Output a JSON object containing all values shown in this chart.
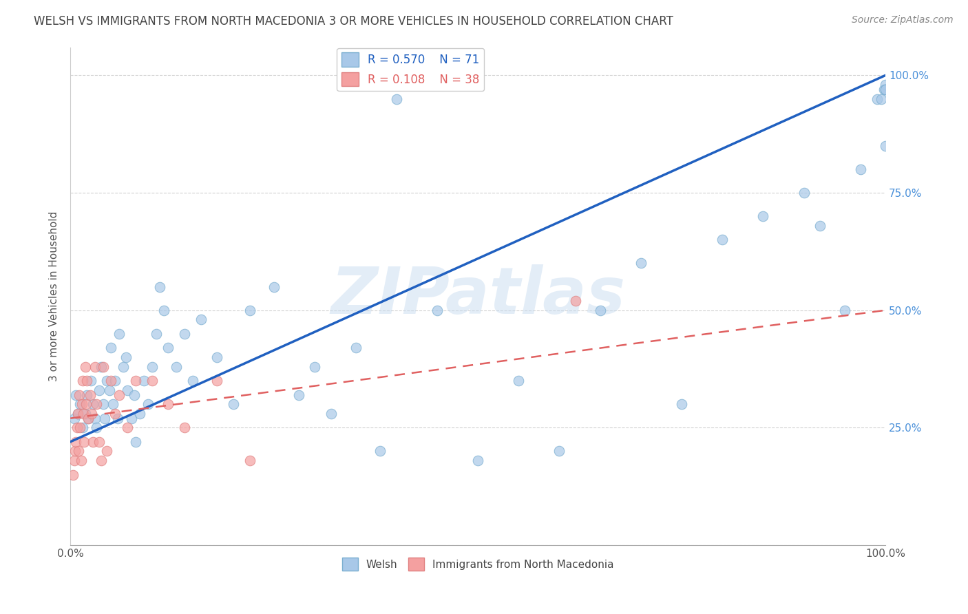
{
  "title": "WELSH VS IMMIGRANTS FROM NORTH MACEDONIA 3 OR MORE VEHICLES IN HOUSEHOLD CORRELATION CHART",
  "source": "Source: ZipAtlas.com",
  "ylabel": "3 or more Vehicles in Household",
  "watermark": "ZIPatlas",
  "legend_welsh": {
    "R": "0.570",
    "N": "71"
  },
  "legend_macedonian": {
    "R": "0.108",
    "N": "38"
  },
  "legend_labels": [
    "Welsh",
    "Immigrants from North Macedonia"
  ],
  "welsh_color": "#a8c8e8",
  "macedonian_color": "#f4a0a0",
  "welsh_line_color": "#2060c0",
  "macedonian_line_color": "#e06060",
  "title_fontsize": 12,
  "source_fontsize": 10,
  "ylabel_fontsize": 11,
  "background_color": "#ffffff",
  "welsh_x": [
    0.005,
    0.007,
    0.009,
    0.012,
    0.015,
    0.018,
    0.02,
    0.022,
    0.025,
    0.028,
    0.03,
    0.032,
    0.035,
    0.038,
    0.04,
    0.042,
    0.045,
    0.048,
    0.05,
    0.052,
    0.055,
    0.058,
    0.06,
    0.065,
    0.068,
    0.07,
    0.075,
    0.078,
    0.08,
    0.085,
    0.09,
    0.095,
    0.1,
    0.105,
    0.11,
    0.115,
    0.12,
    0.13,
    0.14,
    0.15,
    0.16,
    0.18,
    0.2,
    0.22,
    0.25,
    0.28,
    0.3,
    0.32,
    0.35,
    0.38,
    0.4,
    0.45,
    0.5,
    0.55,
    0.6,
    0.65,
    0.7,
    0.75,
    0.8,
    0.85,
    0.9,
    0.92,
    0.95,
    0.97,
    0.99,
    0.995,
    0.998,
    1.0,
    1.0,
    1.0,
    1.0
  ],
  "welsh_y": [
    0.27,
    0.32,
    0.28,
    0.3,
    0.25,
    0.28,
    0.32,
    0.27,
    0.35,
    0.3,
    0.27,
    0.25,
    0.33,
    0.38,
    0.3,
    0.27,
    0.35,
    0.33,
    0.42,
    0.3,
    0.35,
    0.27,
    0.45,
    0.38,
    0.4,
    0.33,
    0.27,
    0.32,
    0.22,
    0.28,
    0.35,
    0.3,
    0.38,
    0.45,
    0.55,
    0.5,
    0.42,
    0.38,
    0.45,
    0.35,
    0.48,
    0.4,
    0.3,
    0.5,
    0.55,
    0.32,
    0.38,
    0.28,
    0.42,
    0.2,
    0.95,
    0.5,
    0.18,
    0.35,
    0.2,
    0.5,
    0.6,
    0.3,
    0.65,
    0.7,
    0.75,
    0.68,
    0.5,
    0.8,
    0.95,
    0.95,
    0.97,
    0.98,
    0.97,
    0.97,
    0.85
  ],
  "macedonian_x": [
    0.003,
    0.005,
    0.006,
    0.007,
    0.008,
    0.009,
    0.01,
    0.011,
    0.012,
    0.013,
    0.014,
    0.015,
    0.016,
    0.017,
    0.018,
    0.019,
    0.02,
    0.022,
    0.024,
    0.026,
    0.028,
    0.03,
    0.032,
    0.035,
    0.038,
    0.04,
    0.045,
    0.05,
    0.055,
    0.06,
    0.07,
    0.08,
    0.1,
    0.12,
    0.14,
    0.18,
    0.22,
    0.62
  ],
  "macedonian_y": [
    0.15,
    0.18,
    0.2,
    0.22,
    0.25,
    0.28,
    0.2,
    0.32,
    0.25,
    0.18,
    0.3,
    0.35,
    0.28,
    0.22,
    0.38,
    0.3,
    0.35,
    0.27,
    0.32,
    0.28,
    0.22,
    0.38,
    0.3,
    0.22,
    0.18,
    0.38,
    0.2,
    0.35,
    0.28,
    0.32,
    0.25,
    0.35,
    0.35,
    0.3,
    0.25,
    0.35,
    0.18,
    0.52
  ],
  "welsh_line": [
    0.0,
    0.22,
    1.0,
    1.0
  ],
  "mac_line": [
    0.0,
    0.27,
    1.0,
    0.5
  ],
  "xlim": [
    0.0,
    1.0
  ],
  "ylim": [
    0.0,
    1.0
  ]
}
